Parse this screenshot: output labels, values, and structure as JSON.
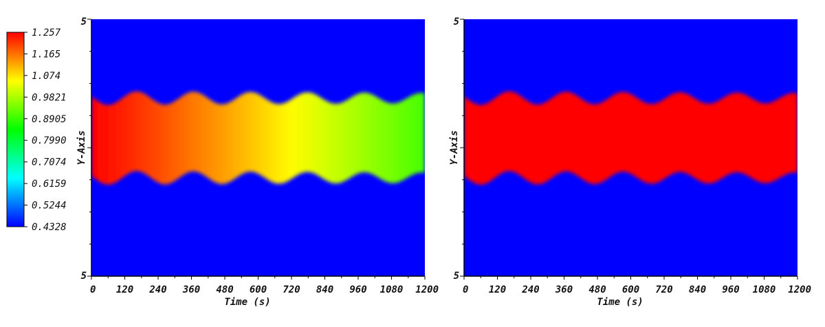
{
  "chart_data": {
    "type": "heatmap",
    "colorbar": {
      "labels": [
        "1.257",
        "1.165",
        "1.074",
        "0.9821",
        "0.8905",
        "0.7990",
        "0.7074",
        "0.6159",
        "0.5244",
        "0.4328"
      ],
      "min": 0.4328,
      "max": 1.257,
      "colormap": [
        "#0000ff",
        "#00ffff",
        "#00ff00",
        "#ffff00",
        "#ff0000"
      ]
    },
    "panels": [
      {
        "name": "left",
        "xlabel": "Time (s)",
        "ylabel": "Y-Axis",
        "xticks": [
          "0",
          "120",
          "240",
          "360",
          "480",
          "600",
          "720",
          "840",
          "960",
          "1080",
          "1200"
        ],
        "xlim": [
          0,
          1200
        ],
        "ytick_top": "5",
        "ytick_bottom": "5",
        "background_value": 0.4328,
        "band_value_start": 1.257,
        "band_value_end": 0.9,
        "oscillation_period_s": 205
      },
      {
        "name": "right",
        "xlabel": "Time (s)",
        "ylabel": "Y-Axis",
        "xticks": [
          "0",
          "120",
          "240",
          "360",
          "480",
          "600",
          "720",
          "840",
          "960",
          "1080",
          "1200"
        ],
        "xlim": [
          0,
          1200
        ],
        "ytick_top": "5",
        "ytick_bottom": "5",
        "background_value": 0.4328,
        "band_value_start": 1.257,
        "band_value_end": 1.257,
        "oscillation_period_s": 205
      }
    ]
  }
}
